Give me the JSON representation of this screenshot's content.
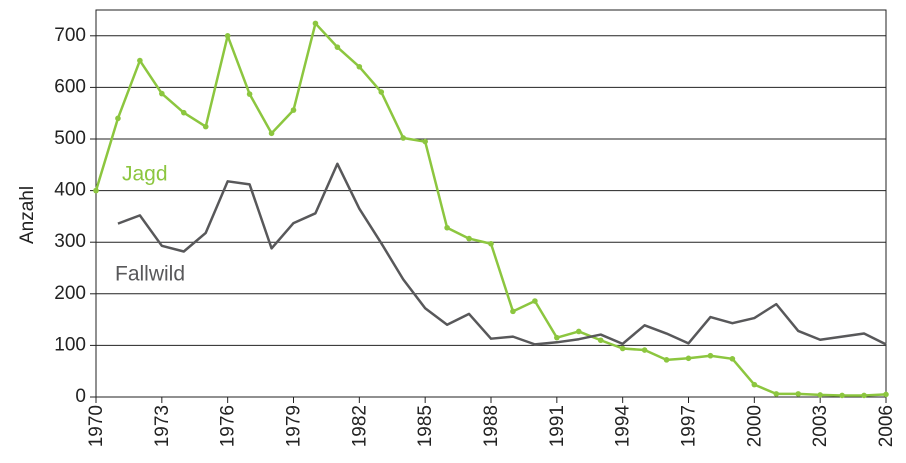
{
  "chart_data": {
    "type": "line",
    "y_label": "Anzahl",
    "x": [
      1970,
      1971,
      1972,
      1973,
      1974,
      1975,
      1976,
      1977,
      1978,
      1979,
      1980,
      1981,
      1982,
      1983,
      1984,
      1985,
      1986,
      1987,
      1988,
      1989,
      1990,
      1991,
      1992,
      1993,
      1994,
      1995,
      1996,
      1997,
      1998,
      1999,
      2000,
      2001,
      2002,
      2003,
      2004,
      2005,
      2006
    ],
    "series": [
      {
        "name": "Jagd",
        "color": "#8cc63f",
        "markers": true,
        "values": [
          400,
          540,
          652,
          588,
          551,
          524,
          700,
          587,
          511,
          556,
          724,
          678,
          640,
          591,
          502,
          495,
          328,
          307,
          297,
          166,
          186,
          115,
          127,
          110,
          94,
          91,
          72,
          75,
          80,
          74,
          24,
          6,
          6,
          4,
          3,
          3,
          5
        ]
      },
      {
        "name": "Fallwild",
        "color": "#58585a",
        "markers": false,
        "values": [
          null,
          336,
          352,
          293,
          282,
          318,
          418,
          412,
          288,
          337,
          356,
          452,
          365,
          298,
          228,
          172,
          140,
          161,
          113,
          117,
          102,
          106,
          112,
          121,
          103,
          139,
          123,
          104,
          155,
          143,
          153,
          180,
          128,
          111,
          117,
          123,
          102
        ]
      }
    ],
    "xlim": [
      1970,
      2006
    ],
    "xticks": [
      1970,
      1973,
      1976,
      1979,
      1982,
      1985,
      1988,
      1991,
      1994,
      1997,
      2000,
      2003,
      2006
    ],
    "ylim": [
      0,
      750
    ],
    "yticks": [
      0,
      100,
      200,
      300,
      400,
      500,
      600,
      700
    ],
    "grid": true
  }
}
